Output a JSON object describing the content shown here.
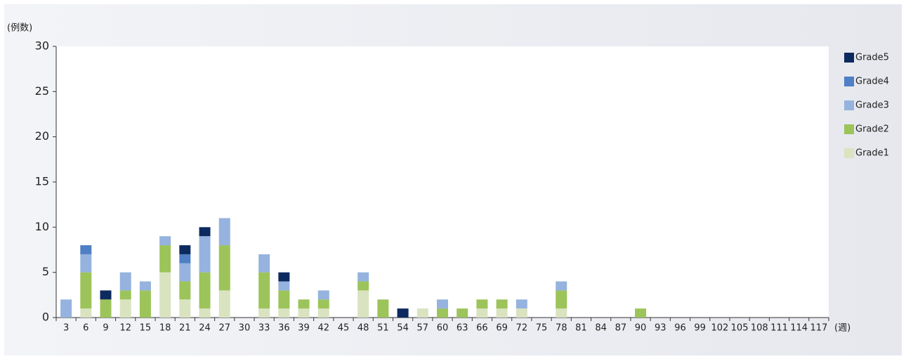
{
  "chart_data": {
    "type": "stacked_bar",
    "y_label": "(例数)",
    "x_label": "(週)",
    "categories": [
      "3",
      "6",
      "9",
      "12",
      "15",
      "18",
      "21",
      "24",
      "27",
      "30",
      "33",
      "36",
      "39",
      "42",
      "45",
      "48",
      "51",
      "54",
      "57",
      "60",
      "63",
      "66",
      "69",
      "72",
      "75",
      "78",
      "81",
      "84",
      "87",
      "90",
      "93",
      "96",
      "99",
      "102",
      "105",
      "108",
      "111",
      "114",
      "117"
    ],
    "series": [
      {
        "name": "Grade1",
        "color": "#d9e3c0",
        "values": [
          0,
          1,
          0,
          2,
          0,
          5,
          2,
          1,
          3,
          0,
          1,
          1,
          1,
          1,
          0,
          3,
          0,
          0,
          1,
          0,
          0,
          1,
          1,
          1,
          0,
          1,
          0,
          0,
          0,
          0,
          0,
          0,
          0,
          0,
          0,
          0,
          0,
          0,
          0
        ]
      },
      {
        "name": "Grade2",
        "color": "#9cc45a",
        "values": [
          0,
          4,
          2,
          1,
          3,
          3,
          2,
          4,
          5,
          0,
          4,
          2,
          1,
          1,
          0,
          1,
          2,
          0,
          0,
          1,
          1,
          1,
          1,
          0,
          0,
          2,
          0,
          0,
          0,
          1,
          0,
          0,
          0,
          0,
          0,
          0,
          0,
          0,
          0
        ]
      },
      {
        "name": "Grade3",
        "color": "#95b3de",
        "values": [
          2,
          2,
          0,
          2,
          1,
          1,
          2,
          4,
          3,
          0,
          2,
          1,
          0,
          1,
          0,
          1,
          0,
          0,
          0,
          1,
          0,
          0,
          0,
          1,
          0,
          1,
          0,
          0,
          0,
          0,
          0,
          0,
          0,
          0,
          0,
          0,
          0,
          0,
          0
        ]
      },
      {
        "name": "Grade4",
        "color": "#4f7fc4",
        "values": [
          0,
          1,
          0,
          0,
          0,
          0,
          1,
          0,
          0,
          0,
          0,
          0,
          0,
          0,
          0,
          0,
          0,
          0,
          0,
          0,
          0,
          0,
          0,
          0,
          0,
          0,
          0,
          0,
          0,
          0,
          0,
          0,
          0,
          0,
          0,
          0,
          0,
          0,
          0
        ]
      },
      {
        "name": "Grade5",
        "color": "#0d2a5e",
        "values": [
          0,
          0,
          1,
          0,
          0,
          0,
          1,
          1,
          0,
          0,
          0,
          1,
          0,
          0,
          0,
          0,
          0,
          1,
          0,
          0,
          0,
          0,
          0,
          0,
          0,
          0,
          0,
          0,
          0,
          0,
          0,
          0,
          0,
          0,
          0,
          0,
          0,
          0,
          0
        ]
      }
    ],
    "ylim": [
      0,
      30
    ],
    "yticks": [
      0,
      5,
      10,
      15,
      20,
      25,
      30
    ],
    "legend": "right"
  }
}
